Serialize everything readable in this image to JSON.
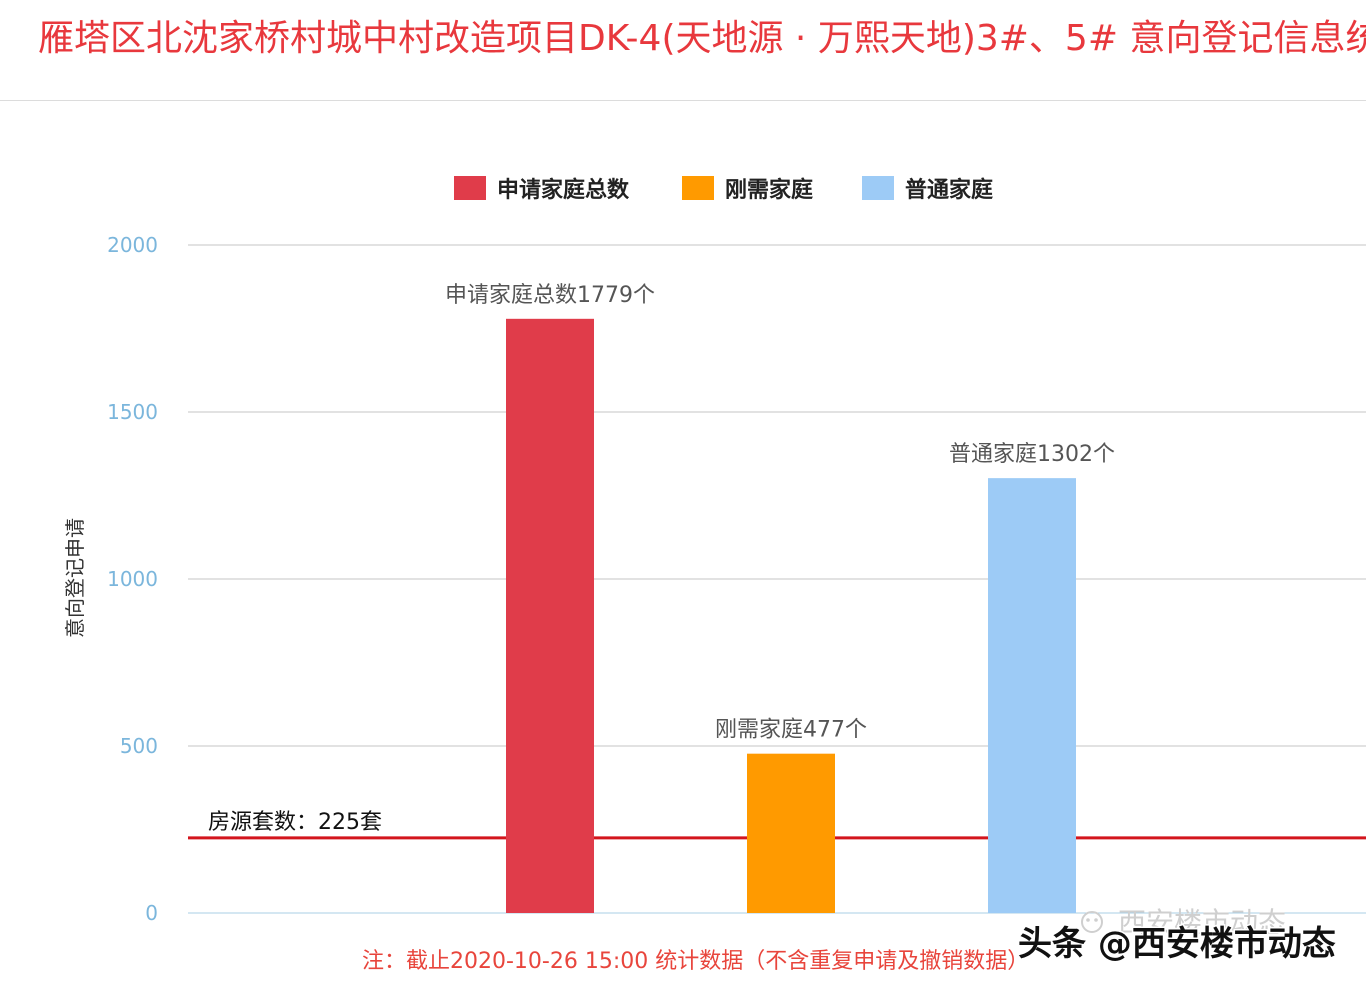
{
  "chart_data": {
    "type": "bar",
    "title": "雁塔区北沈家桥村城中村改造项目DK-4(天地源 · 万熙天地)3#、5# 意向登记信息统",
    "ylabel": "意向登记申请",
    "ylim": [
      0,
      2000
    ],
    "yticks": [
      0,
      500,
      1000,
      1500,
      2000
    ],
    "grid": true,
    "legend_position": "top-center",
    "series": [
      {
        "name": "申请家庭总数",
        "values": [
          1779
        ],
        "color": "#e03c4a",
        "data_label": "申请家庭总数1779个"
      },
      {
        "name": "刚需家庭",
        "values": [
          477
        ],
        "color": "#ff9a00",
        "data_label": "刚需家庭477个"
      },
      {
        "name": "普通家庭",
        "values": [
          1302
        ],
        "color": "#9dcbf6",
        "data_label": "普通家庭1302个"
      }
    ],
    "reference_line": {
      "value": 225,
      "label": "房源套数：225套",
      "color": "#d3151d"
    },
    "footnote": "注：截止2020-10-26 15:00 统计数据（不含重复申请及撤销数据）"
  },
  "watermark": {
    "main": "头条 @西安楼市动态",
    "faint": "西安楼市动态",
    "icon": "wechat-icon"
  },
  "colors": {
    "title": "#e8383d",
    "footnote": "#e8453c",
    "tick_label": "#7bb6dc",
    "grid": "#c4c4c4",
    "baseline": "#a9cfe6"
  }
}
